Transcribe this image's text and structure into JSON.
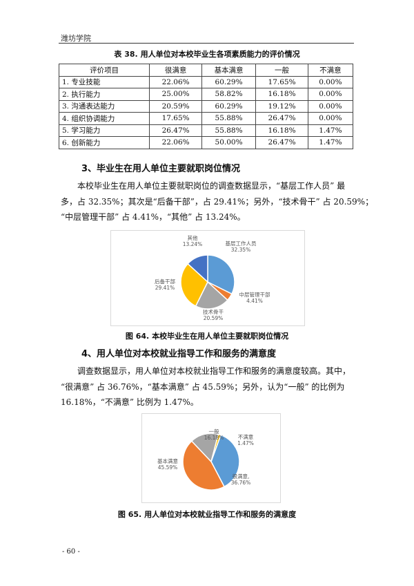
{
  "header": {
    "institution": "潍坊学院"
  },
  "table": {
    "caption": "表 38. 用人单位对本校毕业生各项素质能力的评价情况",
    "columns": [
      "评价项目",
      "很满意",
      "基本满意",
      "一般",
      "不满意"
    ],
    "rows": [
      [
        "1. 专业技能",
        "22.06%",
        "60.29%",
        "17.65%",
        "0.00%"
      ],
      [
        "2. 执行能力",
        "25.00%",
        "58.82%",
        "16.18%",
        "0.00%"
      ],
      [
        "3. 沟通表达能力",
        "20.59%",
        "60.29%",
        "19.12%",
        "0.00%"
      ],
      [
        "4. 组织协调能力",
        "17.65%",
        "55.88%",
        "26.47%",
        "0.00%"
      ],
      [
        "5. 学习能力",
        "26.47%",
        "55.88%",
        "16.18%",
        "1.47%"
      ],
      [
        "6. 创新能力",
        "22.06%",
        "50.00%",
        "26.47%",
        "1.47%"
      ]
    ]
  },
  "section3": {
    "heading": "3、毕业生在用人单位主要就职岗位情况",
    "lines": [
      "本校毕业生在用人单位主要就职岗位的调查数据显示，“基层工作人员” 最",
      "多，占 32.35%；其次是“后备干部”，占 29.41%；另外，“技术骨干” 占 20.59%；",
      "“中层管理干部” 占 4.41%，“其他” 占 13.24%。"
    ],
    "figure_caption": "图 64. 本校毕业生在用人单位主要就职岗位情况"
  },
  "section4": {
    "heading": "4、用人单位对本校就业指导工作和服务的满意度",
    "lines": [
      "调查数据显示，用人单位对本校就业指导工作和服务的满意度较高。其中，",
      "“很满意” 占 36.76%，“基本满意” 占 45.59%；另外，认为“一般” 的比例为",
      "16.18%，“不满意” 比例为 1.47%。"
    ],
    "figure_caption": "图 65. 用人单位对本校就业指导工作和服务的满意度"
  },
  "chart_data": [
    {
      "type": "pie",
      "slices": [
        {
          "label": "基层工作人员",
          "value": 32.35,
          "text": "32.35%",
          "color": "#5B9BD5"
        },
        {
          "label": "中层管理干部",
          "value": 4.41,
          "text": "4.41%",
          "color": "#ED7D31"
        },
        {
          "label": "技术骨干",
          "value": 20.59,
          "text": "20.59%",
          "color": "#A5A5A5"
        },
        {
          "label": "后备干部",
          "value": 29.41,
          "text": "29.41%",
          "color": "#FFC000"
        },
        {
          "label": "其他",
          "value": 13.24,
          "text": "13.24%",
          "color": "#4472C4"
        }
      ]
    },
    {
      "type": "pie",
      "slices": [
        {
          "label": "很满意,",
          "value": 36.76,
          "text": "36.76%",
          "color": "#5B9BD5"
        },
        {
          "label": "基本满意",
          "value": 45.59,
          "text": "45.59%",
          "color": "#ED7D31"
        },
        {
          "label": "一般",
          "value": 16.18,
          "text": "16.18%",
          "color": "#A5A5A5"
        },
        {
          "label": "不满意",
          "value": 1.47,
          "text": "1.47%",
          "color": "#FFC000"
        }
      ]
    }
  ],
  "footer": {
    "page_number": "- 60 -"
  }
}
